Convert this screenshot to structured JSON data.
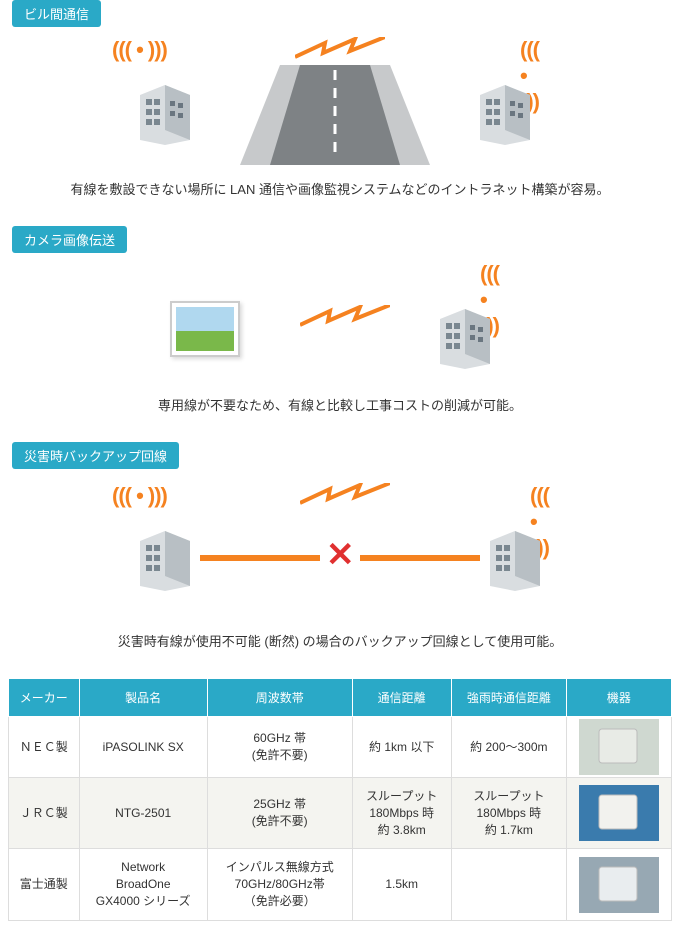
{
  "colors": {
    "accent": "#2aa9c7",
    "orange": "#f58220",
    "red": "#e03030",
    "text": "#333333"
  },
  "sections": [
    {
      "tag": "ビル間通信",
      "caption": "有線を敷設できない場所に LAN 通信や画像監視システムなどのイントラネット構築が容易。"
    },
    {
      "tag": "カメラ画像伝送",
      "caption": "専用線が不要なため、有線と比較し工事コストの削減が可能。"
    },
    {
      "tag": "災害時バックアップ回線",
      "caption": "災害時有線が使用不可能 (断然) の場合のバックアップ回線として使用可能。"
    }
  ],
  "table": {
    "columns": [
      "メーカー",
      "製品名",
      "周波数帯",
      "通信距離",
      "強雨時通信距離",
      "機器"
    ],
    "rows": [
      {
        "maker": "ＮＥＣ製",
        "product": "iPASOLINK SX",
        "freq": "60GHz 帯\n(免許不要)",
        "dist": "約 1km 以下",
        "rain_dist": "約 200〜300m",
        "thumb": {
          "bg": "#cfd8d0",
          "box": "#e8ebe6"
        }
      },
      {
        "maker": "ＪＲＣ製",
        "product": "NTG-2501",
        "freq": "25GHz 帯\n(免許不要)",
        "dist": "スループット\n180Mbps 時\n約 3.8km",
        "rain_dist": "スループット\n180Mbps 時\n約 1.7km",
        "thumb": {
          "bg": "#3a7bad",
          "box": "#f2f2ee"
        }
      },
      {
        "maker": "富士通製",
        "product": "Network\nBroadOne\nGX4000 シリーズ",
        "freq": "インパルス無線方式\n70GHz/80GHz帯\n（免許必要）",
        "dist": "1.5km",
        "rain_dist": "",
        "thumb": {
          "bg": "#97a8b3",
          "box": "#e9edef"
        }
      }
    ]
  }
}
